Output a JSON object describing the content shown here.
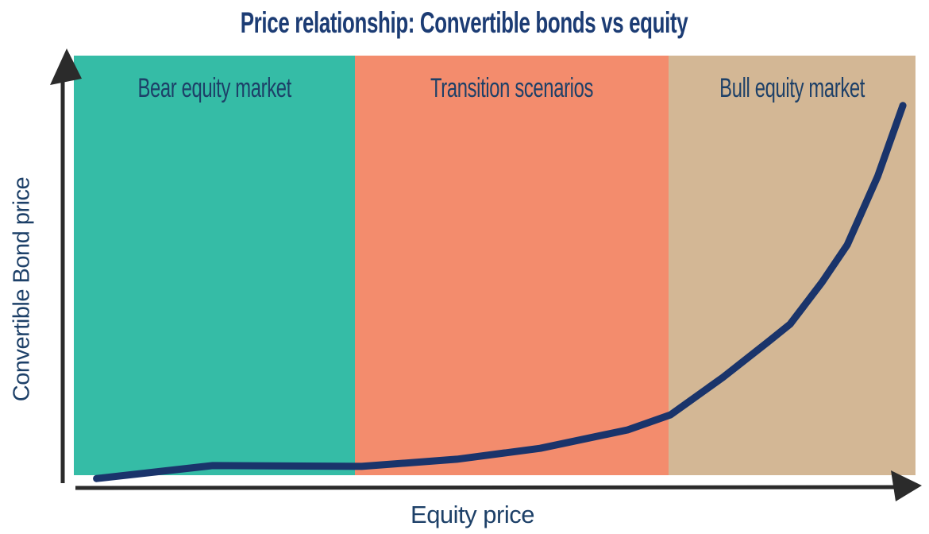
{
  "chart_data": {
    "type": "line",
    "title": "Price relationship: Convertible bonds vs equity",
    "xlabel": "Equity price",
    "ylabel": "Convertible Bond price",
    "grid": false,
    "legend": false,
    "axes_numeric": false,
    "x_range_normalized": [
      0,
      100
    ],
    "y_range_normalized": [
      0,
      100
    ],
    "axis_color": "#2b2b2b",
    "title_color": "#1c3c74",
    "label_color": "#1d4068",
    "zones": [
      {
        "label": "Bear equity market",
        "x_start": 0,
        "x_end": 33.4,
        "color": "#35bca6"
      },
      {
        "label": "Transition scenarios",
        "x_start": 33.4,
        "x_end": 70.7,
        "color": "#f38c6d"
      },
      {
        "label": "Bull equity market",
        "x_start": 70.7,
        "x_end": 100,
        "color": "#d3b795"
      }
    ],
    "series": [
      {
        "name": "Convertible bond price",
        "color": "#1a346b",
        "points": [
          [
            2.7,
            -0.8
          ],
          [
            16.5,
            2.3
          ],
          [
            34.2,
            2.1
          ],
          [
            45.5,
            3.8
          ],
          [
            55.4,
            6.4
          ],
          [
            65.8,
            10.8
          ],
          [
            70.9,
            14.4
          ],
          [
            77.1,
            23.3
          ],
          [
            82.5,
            31.8
          ],
          [
            85.1,
            36.0
          ],
          [
            88.9,
            46.0
          ],
          [
            91.9,
            54.9
          ],
          [
            95.5,
            71.2
          ],
          [
            98.5,
            88.1
          ]
        ]
      }
    ]
  }
}
